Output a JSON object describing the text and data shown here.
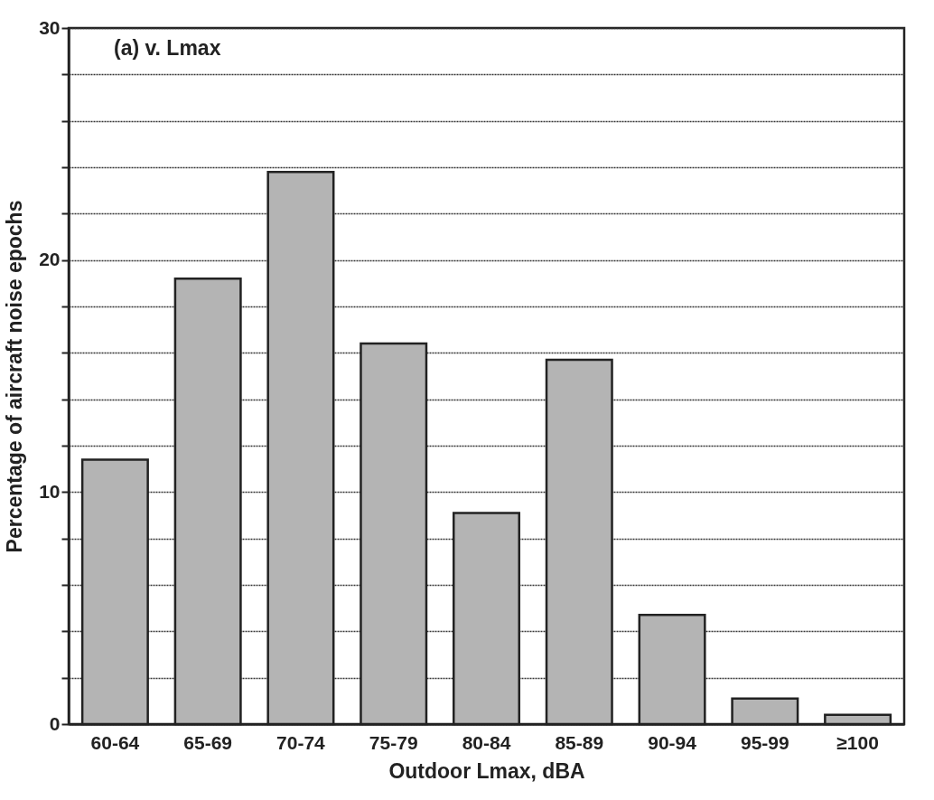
{
  "chart_data": {
    "type": "bar",
    "xlabel": "Outdoor Lmax, dBA",
    "ylabel": "Percentage of aircraft noise epochs",
    "annotations": [
      "(a) v. Lmax"
    ],
    "categories": [
      "60-64",
      "65-69",
      "70-74",
      "75-79",
      "80-84",
      "85-89",
      "90-94",
      "95-99",
      "≥100"
    ],
    "values": [
      11.4,
      19.2,
      23.8,
      16.4,
      9.1,
      15.7,
      4.7,
      1.1,
      0.4
    ],
    "color": "#b4b4b4",
    "ylim": [
      0,
      30
    ],
    "yticks": [
      0,
      {
        "value": 2,
        "label": null
      },
      {
        "value": 4,
        "label": null
      },
      {
        "value": 6,
        "label": null
      },
      {
        "value": 8,
        "label": null
      },
      10,
      {
        "value": 12,
        "label": null
      },
      {
        "value": 14,
        "label": null
      },
      {
        "value": 16,
        "label": null
      },
      {
        "value": 18,
        "label": null
      },
      20,
      {
        "value": 22,
        "label": null
      },
      {
        "value": 24,
        "label": null
      },
      {
        "value": 26,
        "label": null
      },
      {
        "value": 28,
        "label": null
      },
      30
    ],
    "grid": "y"
  }
}
